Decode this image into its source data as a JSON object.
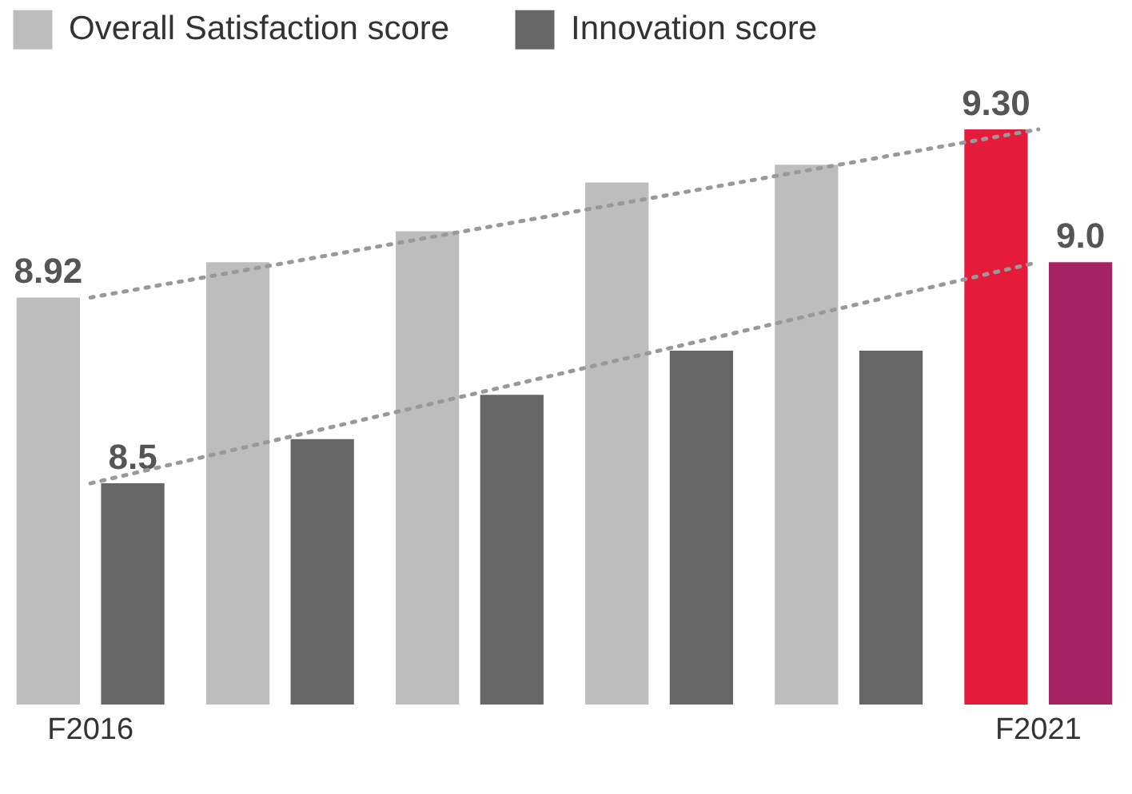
{
  "chart_data": {
    "type": "bar",
    "categories": [
      "F2016",
      null,
      null,
      null,
      null,
      "F2021"
    ],
    "ylim": [
      8,
      9.3
    ],
    "tick_labels": "x",
    "legend": "top",
    "series": [
      {
        "name": "Overall Satisfaction score",
        "color": "#bdbdbd",
        "colors": [
          "#bdbdbd",
          "#bdbdbd",
          "#bdbdbd",
          "#bdbdbd",
          "#bdbdbd",
          "#e41b3a"
        ],
        "values": [
          8.92,
          9.0,
          9.07,
          9.18,
          9.22,
          9.3
        ],
        "value_labels": [
          "8.92",
          null,
          null,
          null,
          null,
          "9.30"
        ]
      },
      {
        "name": "Innovation score",
        "color": "#666666",
        "colors": [
          "#666666",
          "#666666",
          "#666666",
          "#666666",
          "#666666",
          "#a52263"
        ],
        "values": [
          8.5,
          8.6,
          8.7,
          8.8,
          8.8,
          9.0
        ],
        "value_labels": [
          "8.5",
          null,
          null,
          null,
          null,
          "9.0"
        ]
      },
      {
        "type": "line",
        "x": [
          "F2016",
          "F2021"
        ],
        "values": [
          8.92,
          9.3
        ],
        "color": "#999999",
        "line_style": "dotted"
      },
      {
        "type": "line",
        "x": [
          "F2016",
          "F2021"
        ],
        "values": [
          8.5,
          9.0
        ],
        "color": "#999999",
        "line_style": "dotted"
      }
    ]
  }
}
